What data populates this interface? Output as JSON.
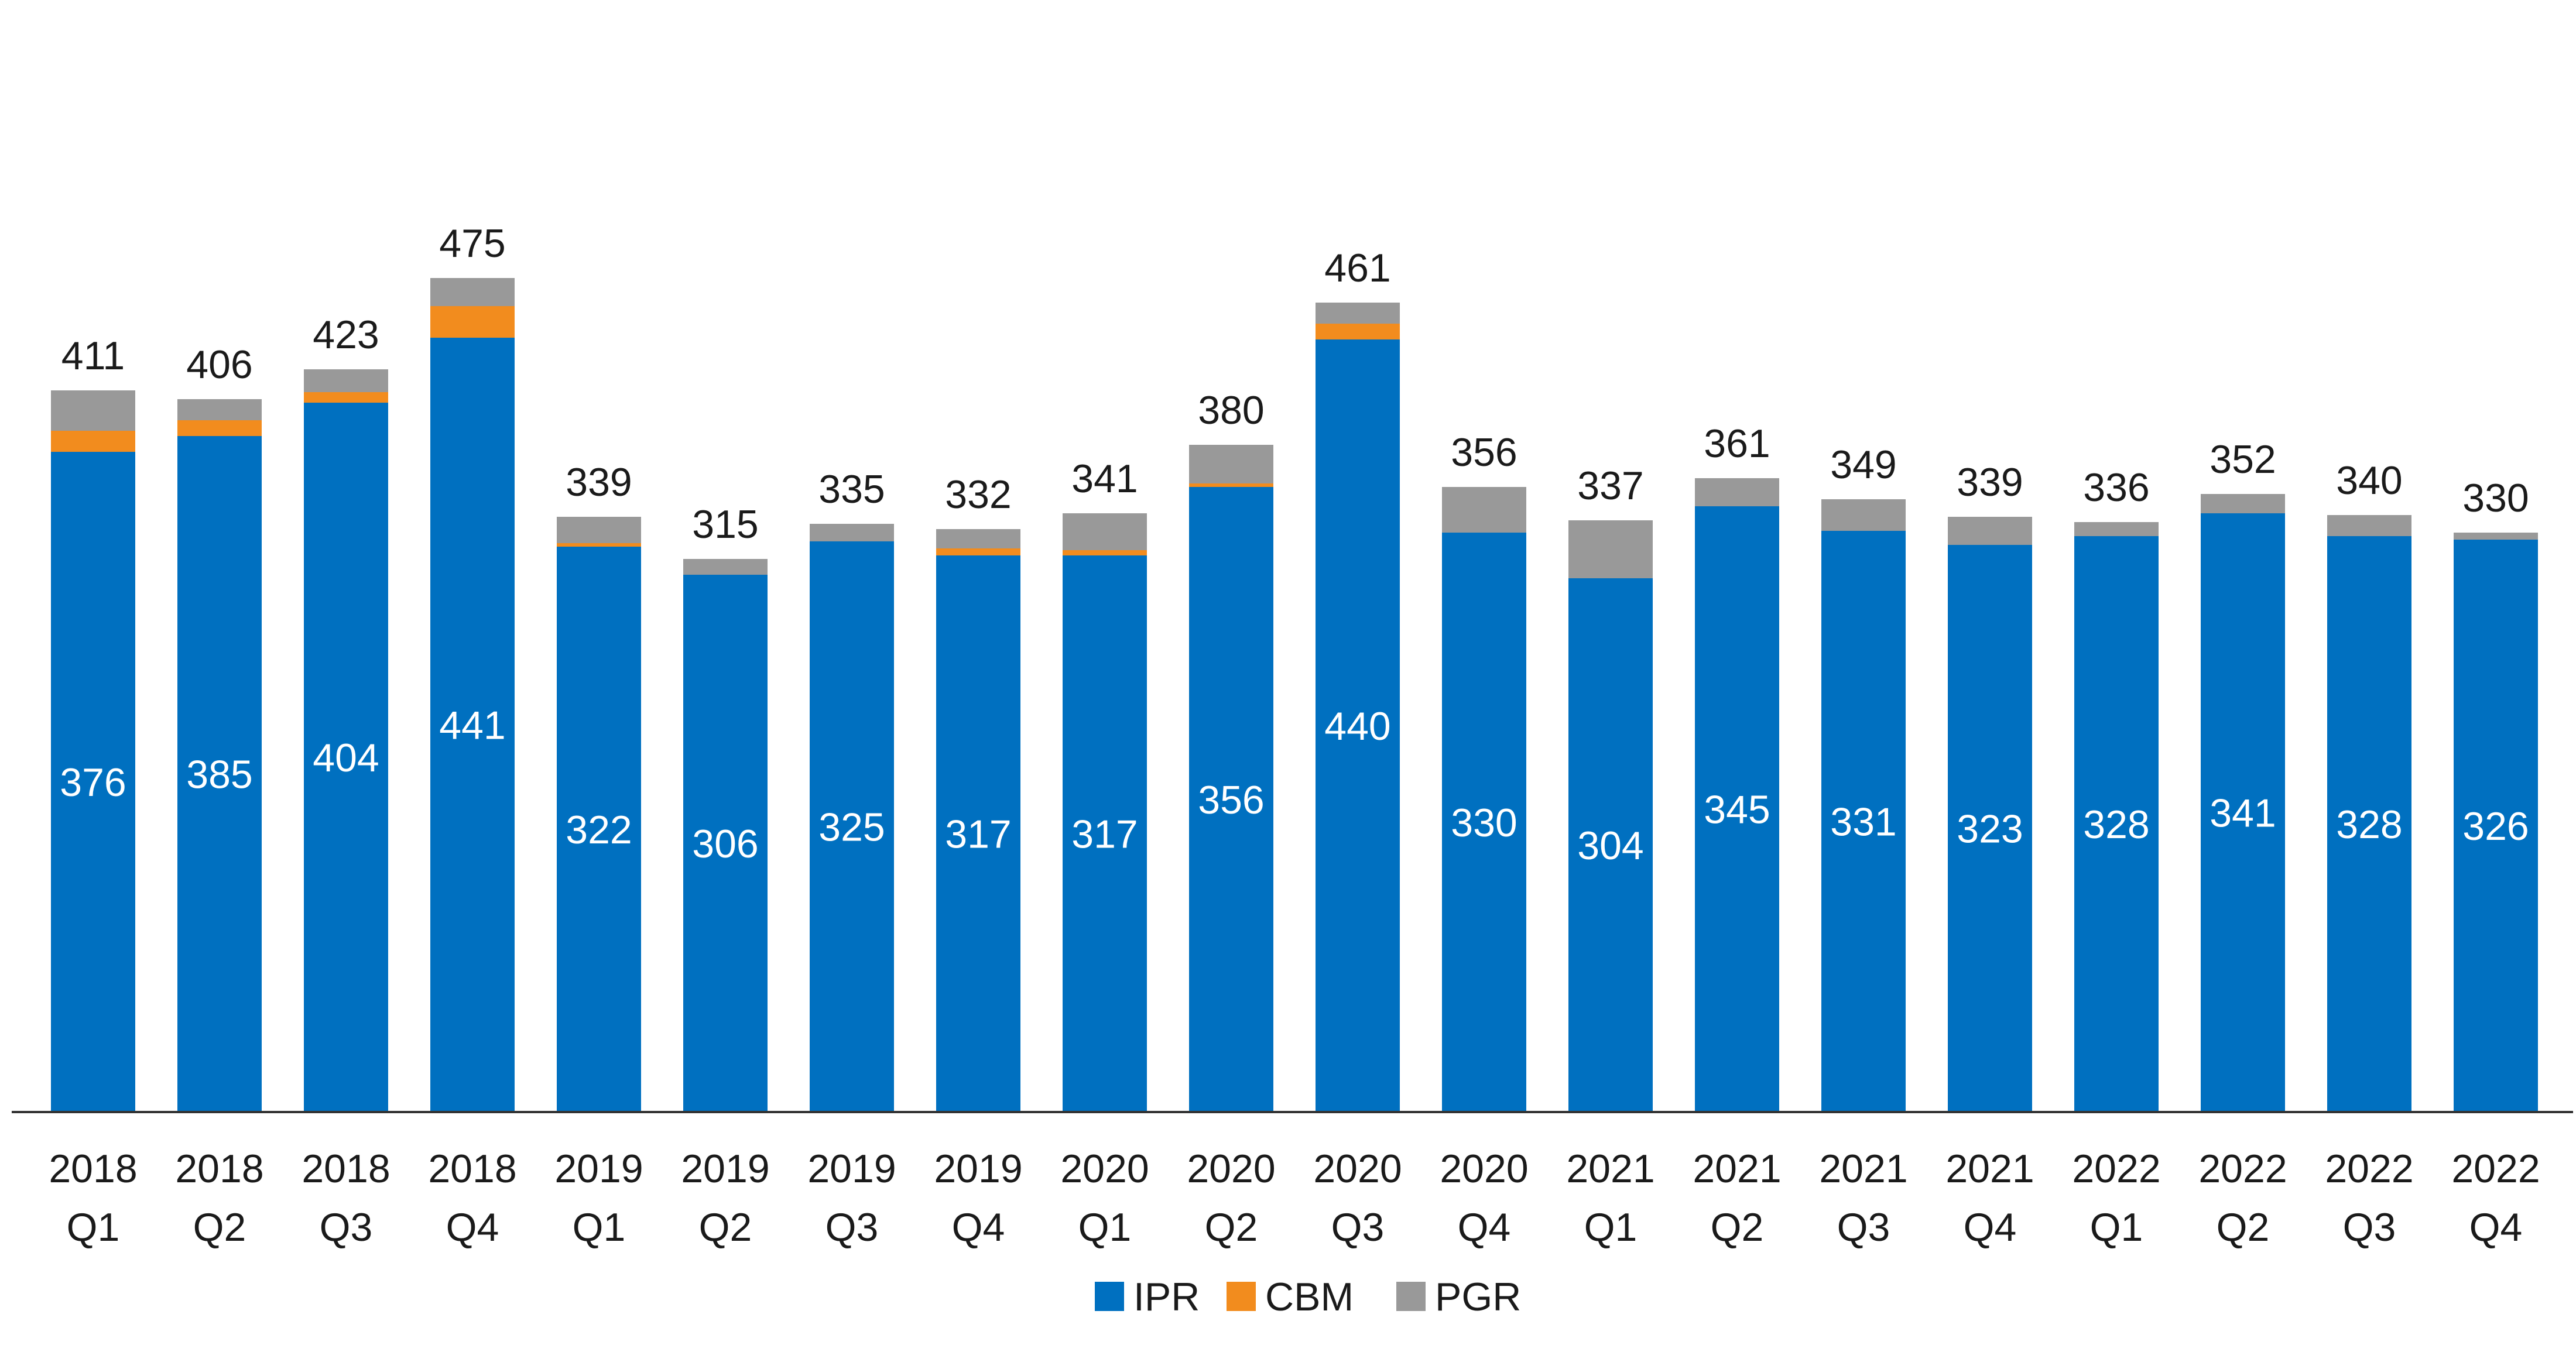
{
  "chart_data": {
    "type": "bar",
    "stacked": true,
    "title": "",
    "xlabel": "",
    "ylabel": "",
    "ylim": [
      0,
      500
    ],
    "grid": false,
    "legend_position": "bottom-center",
    "categories": [
      [
        "2018",
        "Q1"
      ],
      [
        "2018",
        "Q2"
      ],
      [
        "2018",
        "Q3"
      ],
      [
        "2018",
        "Q4"
      ],
      [
        "2019",
        "Q1"
      ],
      [
        "2019",
        "Q2"
      ],
      [
        "2019",
        "Q3"
      ],
      [
        "2019",
        "Q4"
      ],
      [
        "2020",
        "Q1"
      ],
      [
        "2020",
        "Q2"
      ],
      [
        "2020",
        "Q3"
      ],
      [
        "2020",
        "Q4"
      ],
      [
        "2021",
        "Q1"
      ],
      [
        "2021",
        "Q2"
      ],
      [
        "2021",
        "Q3"
      ],
      [
        "2021",
        "Q4"
      ],
      [
        "2022",
        "Q1"
      ],
      [
        "2022",
        "Q2"
      ],
      [
        "2022",
        "Q3"
      ],
      [
        "2022",
        "Q4"
      ]
    ],
    "series": [
      {
        "name": "IPR",
        "color": "#0070C0",
        "values": [
          376,
          385,
          404,
          441,
          322,
          306,
          325,
          317,
          317,
          356,
          440,
          330,
          304,
          345,
          331,
          323,
          328,
          341,
          328,
          326
        ]
      },
      {
        "name": "CBM",
        "color": "#F28C1E",
        "values": [
          12,
          9,
          6,
          18,
          2,
          0,
          0,
          4,
          3,
          2,
          9,
          0,
          0,
          0,
          0,
          0,
          0,
          0,
          0,
          0
        ]
      },
      {
        "name": "PGR",
        "color": "#999999",
        "values": [
          23,
          12,
          13,
          16,
          15,
          9,
          10,
          11,
          21,
          22,
          12,
          26,
          33,
          16,
          18,
          16,
          8,
          11,
          12,
          4
        ]
      }
    ],
    "totals": [
      411,
      406,
      423,
      475,
      339,
      315,
      335,
      332,
      341,
      380,
      461,
      356,
      337,
      361,
      349,
      339,
      336,
      352,
      340,
      330
    ]
  }
}
